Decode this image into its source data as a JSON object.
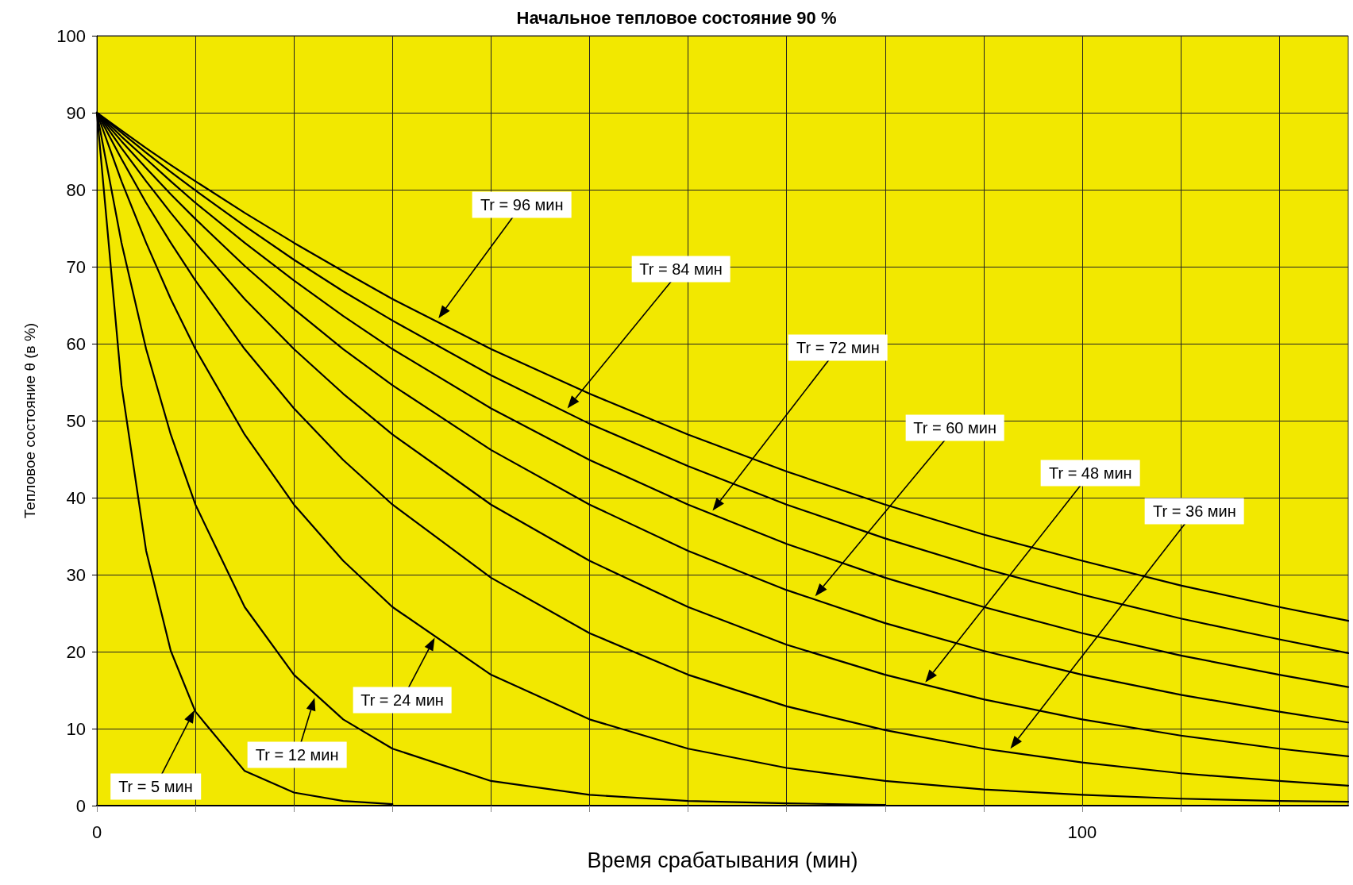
{
  "chart_data": {
    "type": "line",
    "title": "Начальное тепловое состояние 90 %",
    "xlabel": "Время срабатывания (мин)",
    "ylabel": "Тепловое состояние θ (в %)",
    "x": [
      0,
      2.5,
      5,
      7.5,
      10,
      15,
      20,
      25,
      30,
      40,
      50,
      60,
      70,
      80,
      90,
      100,
      110,
      120,
      127
    ],
    "series": [
      {
        "color": "#000000",
        "values": [
          90,
          54.6,
          33.1,
          20.1,
          12.2,
          4.5,
          1.7,
          0.6,
          0.2,
          null,
          null,
          null,
          null,
          null,
          null,
          null,
          null,
          null,
          null
        ]
      },
      {
        "color": "#000000",
        "values": [
          90,
          73.1,
          59.3,
          48.2,
          39.1,
          25.8,
          17.0,
          11.2,
          7.4,
          3.2,
          1.4,
          0.6,
          0.3,
          0.1,
          null,
          null,
          null,
          null,
          null
        ]
      },
      {
        "color": "#000000",
        "values": [
          90,
          81.1,
          73.1,
          65.8,
          59.3,
          48.2,
          39.1,
          31.8,
          25.8,
          17.0,
          11.2,
          7.4,
          4.9,
          3.2,
          2.1,
          1.4,
          0.9,
          0.6,
          0.5
        ]
      },
      {
        "color": "#000000",
        "values": [
          90,
          84.0,
          78.3,
          73.1,
          68.2,
          59.3,
          51.6,
          44.9,
          39.1,
          29.6,
          22.4,
          17.0,
          12.9,
          9.8,
          7.4,
          5.6,
          4.2,
          3.2,
          2.6
        ]
      },
      {
        "color": "#000000",
        "values": [
          90,
          85.4,
          81.1,
          77.0,
          73.1,
          65.8,
          59.3,
          53.5,
          48.2,
          39.1,
          31.8,
          25.8,
          20.9,
          17.0,
          13.8,
          11.2,
          9.1,
          7.4,
          6.4
        ]
      },
      {
        "color": "#000000",
        "values": [
          90,
          86.3,
          82.8,
          79.4,
          76.2,
          70.1,
          64.5,
          59.3,
          54.6,
          46.2,
          39.1,
          33.1,
          28.0,
          23.7,
          20.1,
          17.0,
          14.4,
          12.2,
          10.8
        ]
      },
      {
        "color": "#000000",
        "values": [
          90,
          86.9,
          84.0,
          81.1,
          78.3,
          73.1,
          68.2,
          63.6,
          59.3,
          51.6,
          44.9,
          39.1,
          34.0,
          29.6,
          25.8,
          22.4,
          19.5,
          17.0,
          15.4
        ]
      },
      {
        "color": "#000000",
        "values": [
          90,
          87.4,
          84.8,
          82.3,
          79.9,
          75.3,
          70.9,
          66.8,
          63.0,
          55.9,
          49.6,
          44.1,
          39.1,
          34.7,
          30.8,
          27.4,
          24.3,
          21.6,
          19.8
        ]
      },
      {
        "color": "#000000",
        "values": [
          90,
          87.7,
          85.4,
          83.2,
          81.1,
          77.0,
          73.1,
          69.4,
          65.8,
          59.3,
          53.5,
          48.2,
          43.4,
          39.1,
          35.2,
          31.8,
          28.6,
          25.8,
          24.0
        ]
      }
    ],
    "xlim": [
      0,
      127
    ],
    "xticks": [
      0,
      {
        "value": 10,
        "label": null
      },
      {
        "value": 20,
        "label": null
      },
      {
        "value": 30,
        "label": null
      },
      {
        "value": 40,
        "label": null
      },
      {
        "value": 50,
        "label": null
      },
      {
        "value": 60,
        "label": null
      },
      {
        "value": 70,
        "label": null
      },
      {
        "value": 80,
        "label": null
      },
      {
        "value": 90,
        "label": null
      },
      100,
      {
        "value": 110,
        "label": null
      },
      {
        "value": 120,
        "label": null
      }
    ],
    "ylim": [
      0,
      100
    ],
    "yticks": [
      0,
      10,
      20,
      30,
      40,
      50,
      60,
      70,
      80,
      90,
      100
    ],
    "grid": true,
    "marker": "none",
    "line_style": "solid",
    "annotations": [
      "Tr = 96 мин",
      "Tr = 84 мин",
      "Tr = 72 мин",
      "Tr = 60 мин",
      "Tr = 48 мин",
      "Tr = 36 мин",
      "Tr = 24 мин",
      "Tr = 12 мин",
      "Tr = 5 мин"
    ]
  }
}
